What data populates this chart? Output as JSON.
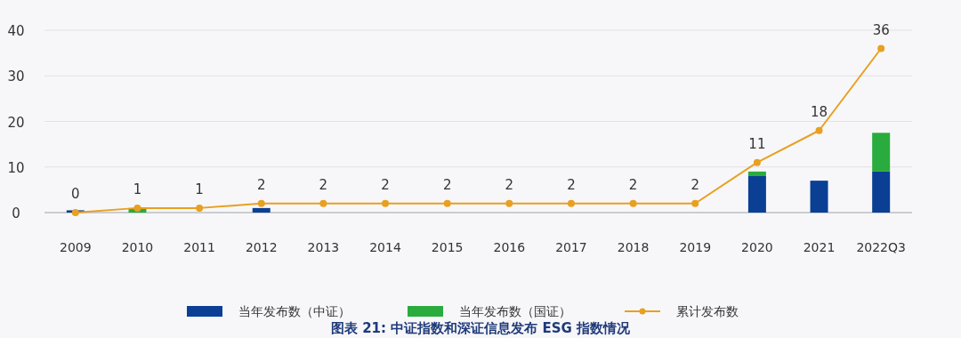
{
  "chart_data": {
    "type": "bar",
    "stacked": true,
    "categories": [
      "2009",
      "2010",
      "2011",
      "2012",
      "2013",
      "2014",
      "2015",
      "2016",
      "2017",
      "2018",
      "2019",
      "2020",
      "2021",
      "2022Q3"
    ],
    "series": [
      {
        "name": "当年发布数（中证）",
        "color": "#0a3f94",
        "values": [
          0.5,
          0,
          0,
          1,
          0,
          0,
          0,
          0,
          0,
          0,
          0,
          8,
          7,
          9
        ]
      },
      {
        "name": "当年发布数（国证）",
        "color": "#2aab3d",
        "values": [
          0,
          1,
          0,
          0,
          0,
          0,
          0,
          0,
          0,
          0,
          0,
          1,
          0,
          8.5
        ]
      },
      {
        "name": "累计发布数",
        "type": "line",
        "color": "#e8a020",
        "marker": "circle",
        "values": [
          0,
          1,
          1,
          2,
          2,
          2,
          2,
          2,
          2,
          2,
          2,
          11,
          18,
          36
        ],
        "value_labels": [
          "0",
          "1",
          "1",
          "2",
          "2",
          "2",
          "2",
          "2",
          "2",
          "2",
          "2",
          "11",
          "18",
          "36"
        ]
      }
    ],
    "ylim": [
      0,
      40
    ],
    "yticks": [
      0,
      10,
      20,
      30,
      40
    ],
    "grid": "y",
    "legend": "bottom",
    "annotations": [
      "图表 21: 中证指数和深证信息发布 ESG 指数情况"
    ]
  }
}
